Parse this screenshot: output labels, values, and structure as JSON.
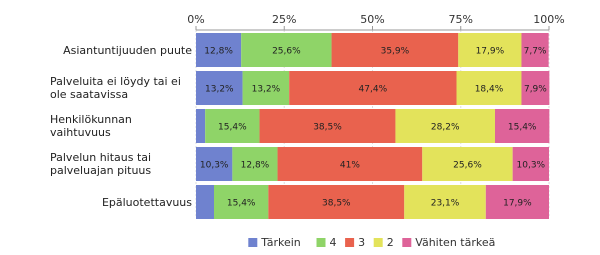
{
  "chart_data": {
    "type": "stacked-bar-horizontal",
    "categories": [
      "Asiantuntijuuden puute",
      "Palveluita ei löydy tai ei ole saatavissa",
      "Henkilökunnan vaihtuvuus",
      "Palvelun hitaus tai palveluajan pituus",
      "Epäluotettavuus"
    ],
    "series": [
      {
        "name": "Tärkein",
        "color": "#6f82cf",
        "values": [
          12.8,
          13.2,
          2.6,
          10.3,
          5.1
        ],
        "value_labels": [
          "12,8%",
          "13,2%",
          null,
          "10,3%",
          null
        ]
      },
      {
        "name": "4",
        "color": "#8fd468",
        "values": [
          25.6,
          13.2,
          15.4,
          12.8,
          15.4
        ],
        "value_labels": [
          "25,6%",
          "13,2%",
          "15,4%",
          "12,8%",
          "15,4%"
        ]
      },
      {
        "name": "3",
        "color": "#e9624e",
        "values": [
          35.9,
          47.4,
          38.5,
          41,
          38.5
        ],
        "value_labels": [
          "35,9%",
          "47,4%",
          "38,5%",
          "41%",
          "38,5%"
        ]
      },
      {
        "name": "2",
        "color": "#e3e35b",
        "values": [
          17.9,
          18.4,
          28.2,
          25.6,
          23.1
        ],
        "value_labels": [
          "17,9%",
          "18,4%",
          "28,2%",
          "25,6%",
          "23,1%"
        ]
      },
      {
        "name": "Vähiten tärkeä",
        "color": "#de6399",
        "values": [
          7.7,
          7.9,
          15.4,
          10.3,
          17.9
        ],
        "value_labels": [
          "7,7%",
          "7,9%",
          "15,4%",
          "10,3%",
          "17,9%"
        ]
      }
    ],
    "xlim": [
      0,
      100
    ],
    "xticks": [
      {
        "value": 0,
        "label": "0%"
      },
      {
        "value": 25,
        "label": "25%"
      },
      {
        "value": 50,
        "label": "50%"
      },
      {
        "value": 75,
        "label": "75%"
      },
      {
        "value": 100,
        "label": "100%"
      }
    ],
    "grid": true,
    "legend": "bottom"
  }
}
